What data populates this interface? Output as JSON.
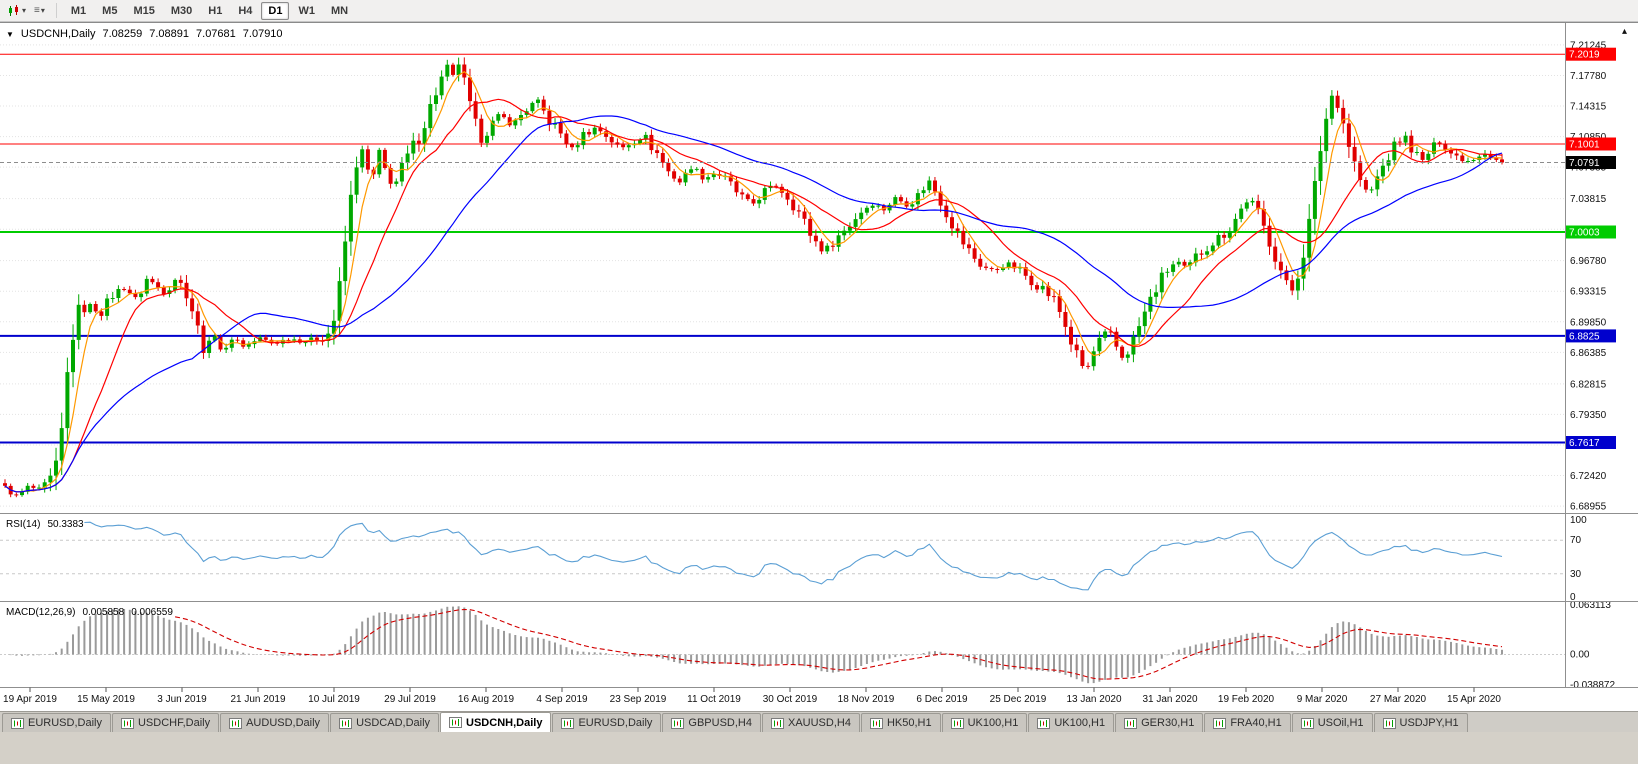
{
  "toolbar": {
    "timeframes": [
      "M1",
      "M5",
      "M15",
      "M30",
      "H1",
      "H4",
      "D1",
      "W1",
      "MN"
    ],
    "active_timeframe": "D1"
  },
  "chart": {
    "title": {
      "symbol_label": "USDCNH,Daily",
      "open": "7.08259",
      "high": "7.08891",
      "low": "7.07681",
      "close": "7.07910"
    },
    "grid_color": "#e3e3e3",
    "price_axis_labels": [
      "7.21245",
      "7.17780",
      "7.14315",
      "7.10850",
      "7.07385",
      "7.03815",
      "7.00350",
      "6.96780",
      "6.93315",
      "6.89850",
      "6.86385",
      "6.82815",
      "6.79350",
      "6.75885",
      "6.72420",
      "6.68955"
    ],
    "hlines": [
      {
        "price": 7.2019,
        "label": "7.2019",
        "color": "#ff0000",
        "width": 1
      },
      {
        "price": 7.1001,
        "label": "7.1001",
        "color": "#ff0000",
        "width": 1
      },
      {
        "price": 7.0003,
        "label": "7.0003",
        "color": "#00cc00",
        "width": 2
      },
      {
        "price": 6.8825,
        "label": "6.8825",
        "color": "#0000cd",
        "width": 2
      },
      {
        "price": 6.7617,
        "label": "6.7617",
        "color": "#0000cd",
        "width": 2
      }
    ],
    "current_price": {
      "value": 7.0791,
      "label": "7.0791",
      "badge_color": "#000000",
      "line_color": "#8c8c8c"
    },
    "time_axis_labels": [
      "19 Apr 2019",
      "15 May 2019",
      "3 Jun 2019",
      "21 Jun 2019",
      "10 Jul 2019",
      "29 Jul 2019",
      "16 Aug 2019",
      "4 Sep 2019",
      "23 Sep 2019",
      "11 Oct 2019",
      "30 Oct 2019",
      "18 Nov 2019",
      "6 Dec 2019",
      "25 Dec 2019",
      "13 Jan 2020",
      "31 Jan 2020",
      "19 Feb 2020",
      "9 Mar 2020",
      "27 Mar 2020",
      "15 Apr 2020"
    ]
  },
  "rsi": {
    "label": "RSI(14)",
    "value": "50.3383",
    "axis_labels": [
      "100",
      "70",
      "30",
      "0"
    ],
    "axis_values": [
      100,
      70,
      30,
      0
    ],
    "levels": [
      70,
      30
    ],
    "line_color": "#5b9fd4"
  },
  "macd": {
    "label": "MACD(12,26,9)",
    "main_value": "0.005858",
    "signal_value": "0.006559",
    "axis_labels": [
      "0.063113",
      "0.00",
      "-0.038872"
    ],
    "ylim": [
      -0.038872,
      0.063113
    ],
    "histogram_color": "#9a9a9a",
    "signal_color": "#d20000"
  },
  "tabs": {
    "items": [
      "EURUSD,Daily",
      "USDCHF,Daily",
      "AUDUSD,Daily",
      "USDCAD,Daily",
      "USDCNH,Daily",
      "EURUSD,Daily",
      "GBPUSD,H4",
      "XAUUSD,H4",
      "HK50,H1",
      "UK100,H1",
      "UK100,H1",
      "GER30,H1",
      "FRA40,H1",
      "USOil,H1",
      "USDJPY,H1"
    ],
    "active_index": 4
  },
  "chart_data": {
    "type": "candlestick",
    "symbol": "USDCNH",
    "timeframe": "Daily",
    "bars": 265,
    "price_range": [
      6.684,
      7.235
    ],
    "ohlc_current": {
      "open": 7.08259,
      "high": 7.08891,
      "low": 7.07681,
      "close": 7.0791
    },
    "colors": {
      "up": "#00a800",
      "down": "#e00000"
    },
    "moving_averages": [
      {
        "period": 5,
        "color": "#ff9900"
      },
      {
        "period": 13,
        "color": "#ff0000"
      },
      {
        "period": 34,
        "color": "#0000ff"
      }
    ],
    "horizontal_levels": [
      7.2019,
      7.1001,
      7.0003,
      6.8825,
      6.7617
    ],
    "indicators": {
      "rsi": {
        "period": 14,
        "current": 50.3383,
        "range": [
          0,
          100
        ],
        "levels": [
          30,
          70
        ]
      },
      "macd": {
        "fast": 12,
        "slow": 26,
        "signal": 9,
        "current_main": 0.005858,
        "current_signal": 0.006559,
        "range": [
          -0.038872,
          0.063113
        ]
      }
    },
    "close_path": [
      [
        0,
        6.71
      ],
      [
        0.008,
        6.7
      ],
      [
        0.016,
        6.712
      ],
      [
        0.024,
        6.706
      ],
      [
        0.03,
        6.718
      ],
      [
        0.036,
        6.742
      ],
      [
        0.042,
        6.845
      ],
      [
        0.048,
        6.91
      ],
      [
        0.056,
        6.918
      ],
      [
        0.064,
        6.908
      ],
      [
        0.072,
        6.93
      ],
      [
        0.08,
        6.938
      ],
      [
        0.088,
        6.922
      ],
      [
        0.095,
        6.948
      ],
      [
        0.102,
        6.938
      ],
      [
        0.108,
        6.93
      ],
      [
        0.113,
        6.948
      ],
      [
        0.118,
        6.94
      ],
      [
        0.122,
        6.93
      ],
      [
        0.128,
        6.895
      ],
      [
        0.134,
        6.862
      ],
      [
        0.14,
        6.885
      ],
      [
        0.146,
        6.86
      ],
      [
        0.152,
        6.882
      ],
      [
        0.16,
        6.87
      ],
      [
        0.17,
        6.88
      ],
      [
        0.18,
        6.874
      ],
      [
        0.19,
        6.88
      ],
      [
        0.2,
        6.876
      ],
      [
        0.21,
        6.88
      ],
      [
        0.216,
        6.886
      ],
      [
        0.22,
        6.902
      ],
      [
        0.225,
        6.955
      ],
      [
        0.229,
        7.015
      ],
      [
        0.233,
        7.062
      ],
      [
        0.237,
        7.098
      ],
      [
        0.241,
        7.078
      ],
      [
        0.245,
        7.055
      ],
      [
        0.25,
        7.09
      ],
      [
        0.255,
        7.066
      ],
      [
        0.26,
        7.052
      ],
      [
        0.266,
        7.076
      ],
      [
        0.272,
        7.096
      ],
      [
        0.278,
        7.112
      ],
      [
        0.284,
        7.142
      ],
      [
        0.29,
        7.168
      ],
      [
        0.295,
        7.185
      ],
      [
        0.299,
        7.175
      ],
      [
        0.303,
        7.193
      ],
      [
        0.307,
        7.168
      ],
      [
        0.311,
        7.14
      ],
      [
        0.315,
        7.118
      ],
      [
        0.319,
        7.104
      ],
      [
        0.325,
        7.122
      ],
      [
        0.331,
        7.133
      ],
      [
        0.339,
        7.121
      ],
      [
        0.347,
        7.138
      ],
      [
        0.355,
        7.149
      ],
      [
        0.363,
        7.128
      ],
      [
        0.371,
        7.112
      ],
      [
        0.379,
        7.094
      ],
      [
        0.387,
        7.112
      ],
      [
        0.395,
        7.119
      ],
      [
        0.403,
        7.108
      ],
      [
        0.411,
        7.094
      ],
      [
        0.419,
        7.103
      ],
      [
        0.427,
        7.109
      ],
      [
        0.435,
        7.091
      ],
      [
        0.443,
        7.069
      ],
      [
        0.451,
        7.057
      ],
      [
        0.459,
        7.076
      ],
      [
        0.467,
        7.061
      ],
      [
        0.475,
        7.068
      ],
      [
        0.483,
        7.057
      ],
      [
        0.491,
        7.041
      ],
      [
        0.499,
        7.031
      ],
      [
        0.507,
        7.046
      ],
      [
        0.515,
        7.053
      ],
      [
        0.523,
        7.041
      ],
      [
        0.531,
        7.021
      ],
      [
        0.539,
        6.995
      ],
      [
        0.547,
        6.978
      ],
      [
        0.555,
        6.993
      ],
      [
        0.563,
        7.006
      ],
      [
        0.571,
        7.023
      ],
      [
        0.579,
        7.033
      ],
      [
        0.587,
        7.026
      ],
      [
        0.595,
        7.039
      ],
      [
        0.603,
        7.031
      ],
      [
        0.611,
        7.043
      ],
      [
        0.617,
        7.059
      ],
      [
        0.623,
        7.043
      ],
      [
        0.629,
        7.022
      ],
      [
        0.637,
        6.996
      ],
      [
        0.645,
        6.976
      ],
      [
        0.653,
        6.961
      ],
      [
        0.661,
        6.956
      ],
      [
        0.669,
        6.965
      ],
      [
        0.677,
        6.958
      ],
      [
        0.685,
        6.946
      ],
      [
        0.693,
        6.937
      ],
      [
        0.701,
        6.923
      ],
      [
        0.707,
        6.901
      ],
      [
        0.713,
        6.871
      ],
      [
        0.719,
        6.849
      ],
      [
        0.723,
        6.845
      ],
      [
        0.727,
        6.863
      ],
      [
        0.732,
        6.879
      ],
      [
        0.737,
        6.889
      ],
      [
        0.742,
        6.871
      ],
      [
        0.747,
        6.856
      ],
      [
        0.753,
        6.875
      ],
      [
        0.759,
        6.899
      ],
      [
        0.765,
        6.923
      ],
      [
        0.771,
        6.943
      ],
      [
        0.777,
        6.959
      ],
      [
        0.783,
        6.967
      ],
      [
        0.789,
        6.957
      ],
      [
        0.795,
        6.971
      ],
      [
        0.801,
        6.981
      ],
      [
        0.807,
        6.989
      ],
      [
        0.813,
        6.997
      ],
      [
        0.819,
        7.007
      ],
      [
        0.825,
        7.024
      ],
      [
        0.831,
        7.039
      ],
      [
        0.837,
        7.021
      ],
      [
        0.843,
        6.997
      ],
      [
        0.849,
        6.971
      ],
      [
        0.855,
        6.945
      ],
      [
        0.859,
        6.931
      ],
      [
        0.863,
        6.949
      ],
      [
        0.867,
        6.973
      ],
      [
        0.871,
        7.009
      ],
      [
        0.875,
        7.053
      ],
      [
        0.879,
        7.097
      ],
      [
        0.883,
        7.133
      ],
      [
        0.887,
        7.159
      ],
      [
        0.891,
        7.145
      ],
      [
        0.895,
        7.117
      ],
      [
        0.899,
        7.091
      ],
      [
        0.903,
        7.071
      ],
      [
        0.907,
        7.051
      ],
      [
        0.911,
        7.041
      ],
      [
        0.917,
        7.063
      ],
      [
        0.923,
        7.083
      ],
      [
        0.929,
        7.099
      ],
      [
        0.935,
        7.109
      ],
      [
        0.941,
        7.091
      ],
      [
        0.947,
        7.081
      ],
      [
        0.953,
        7.095
      ],
      [
        0.959,
        7.103
      ],
      [
        0.965,
        7.091
      ],
      [
        0.971,
        7.085
      ],
      [
        0.977,
        7.081
      ],
      [
        0.983,
        7.086
      ],
      [
        0.989,
        7.091
      ],
      [
        0.995,
        7.083
      ],
      [
        1,
        7.079
      ]
    ]
  }
}
